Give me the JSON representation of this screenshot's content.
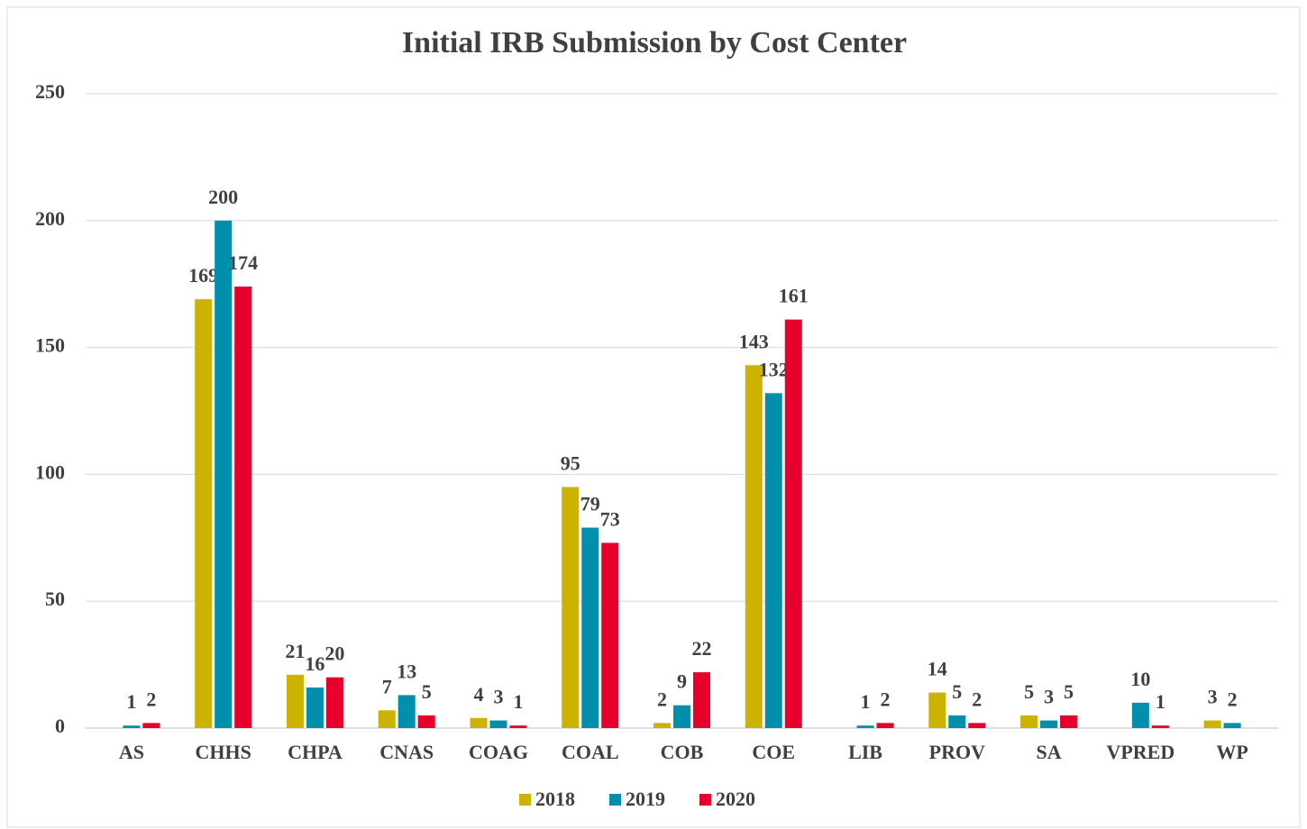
{
  "chart_data": {
    "type": "bar",
    "title": "Initial IRB Submission by Cost Center",
    "categories": [
      "AS",
      "CHHS",
      "CHPA",
      "CNAS",
      "COAG",
      "COAL",
      "COB",
      "COE",
      "LIB",
      "PROV",
      "SA",
      "VPRED",
      "WP"
    ],
    "series": [
      {
        "name": "2018",
        "color": "#cbb300",
        "values": [
          null,
          169,
          21,
          7,
          4,
          95,
          2,
          143,
          null,
          14,
          5,
          null,
          3
        ]
      },
      {
        "name": "2019",
        "color": "#0090ae",
        "values": [
          1,
          200,
          16,
          13,
          3,
          79,
          9,
          132,
          1,
          5,
          3,
          10,
          2
        ]
      },
      {
        "name": "2020",
        "color": "#e6002b",
        "values": [
          2,
          174,
          20,
          5,
          1,
          73,
          22,
          161,
          2,
          2,
          5,
          1,
          null
        ]
      }
    ],
    "ylim": [
      0,
      250
    ],
    "yticks": [
      0,
      50,
      100,
      150,
      200,
      250
    ],
    "grid": true,
    "legend": "bottom"
  }
}
